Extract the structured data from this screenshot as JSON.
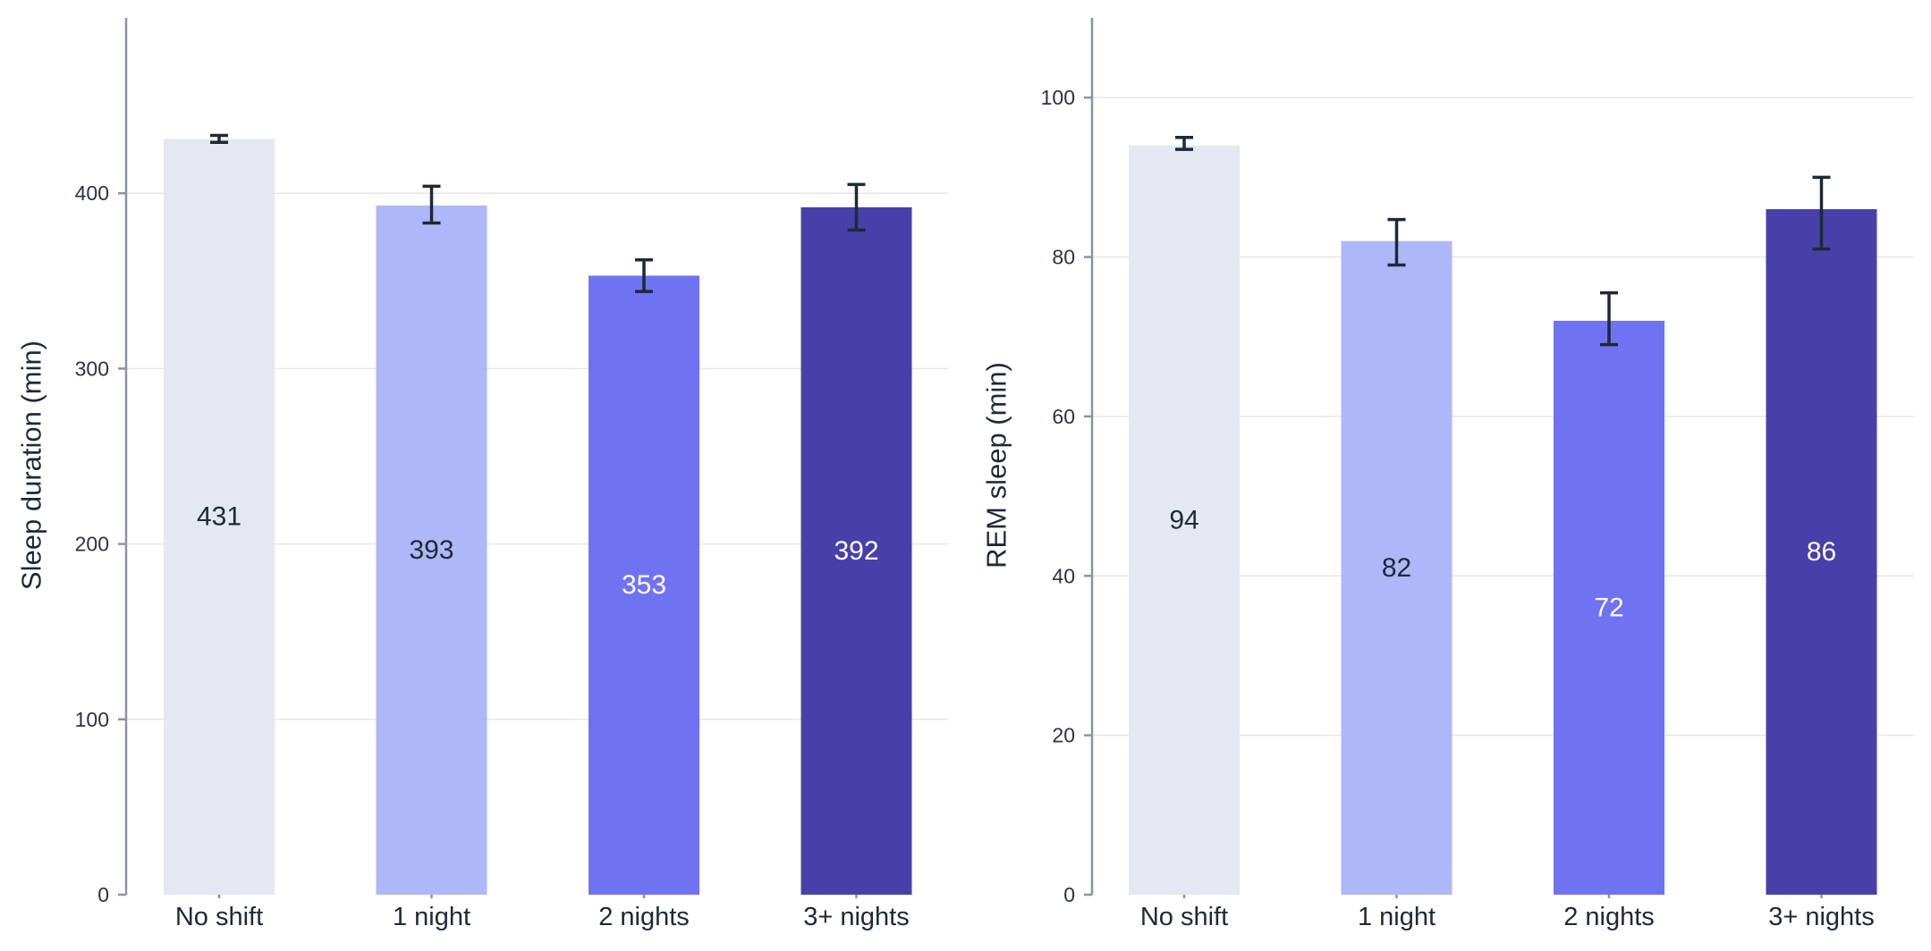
{
  "chart_data": [
    {
      "type": "bar",
      "title": "",
      "xlabel": "",
      "ylabel": "Sleep duration (min)",
      "categories": [
        "No shift",
        "1 night",
        "2 nights",
        "3+ nights"
      ],
      "values": [
        431,
        393,
        353,
        392
      ],
      "value_labels": [
        "431",
        "393",
        "353",
        "392"
      ],
      "error_low": [
        429,
        383,
        344,
        379
      ],
      "error_high": [
        433,
        404,
        362,
        405
      ],
      "ylim": [
        0,
        500
      ],
      "yticks": [
        0,
        100,
        200,
        300,
        400
      ],
      "grid": true,
      "bar_colors": [
        "#e4e8f1",
        "#aeb8f9",
        "#7073f1",
        "#4840a8"
      ],
      "label_colors": [
        "#1f2937",
        "#1f2937",
        "#ffffff",
        "#ffffff"
      ]
    },
    {
      "type": "bar",
      "title": "",
      "xlabel": "",
      "ylabel": "REM sleep (min)",
      "categories": [
        "No shift",
        "1 night",
        "2 nights",
        "3+ nights"
      ],
      "values": [
        94,
        82,
        72,
        86
      ],
      "value_labels": [
        "94",
        "82",
        "72",
        "86"
      ],
      "error_low": [
        93.5,
        79,
        69,
        81
      ],
      "error_high": [
        95,
        84.7,
        75.5,
        90
      ],
      "ylim": [
        0,
        110
      ],
      "yticks": [
        0,
        20,
        40,
        60,
        80,
        100
      ],
      "grid": true,
      "bar_colors": [
        "#e4e8f1",
        "#aeb8f9",
        "#7073f1",
        "#4840a8"
      ],
      "label_colors": [
        "#1f2937",
        "#1f2937",
        "#ffffff",
        "#ffffff"
      ]
    }
  ]
}
